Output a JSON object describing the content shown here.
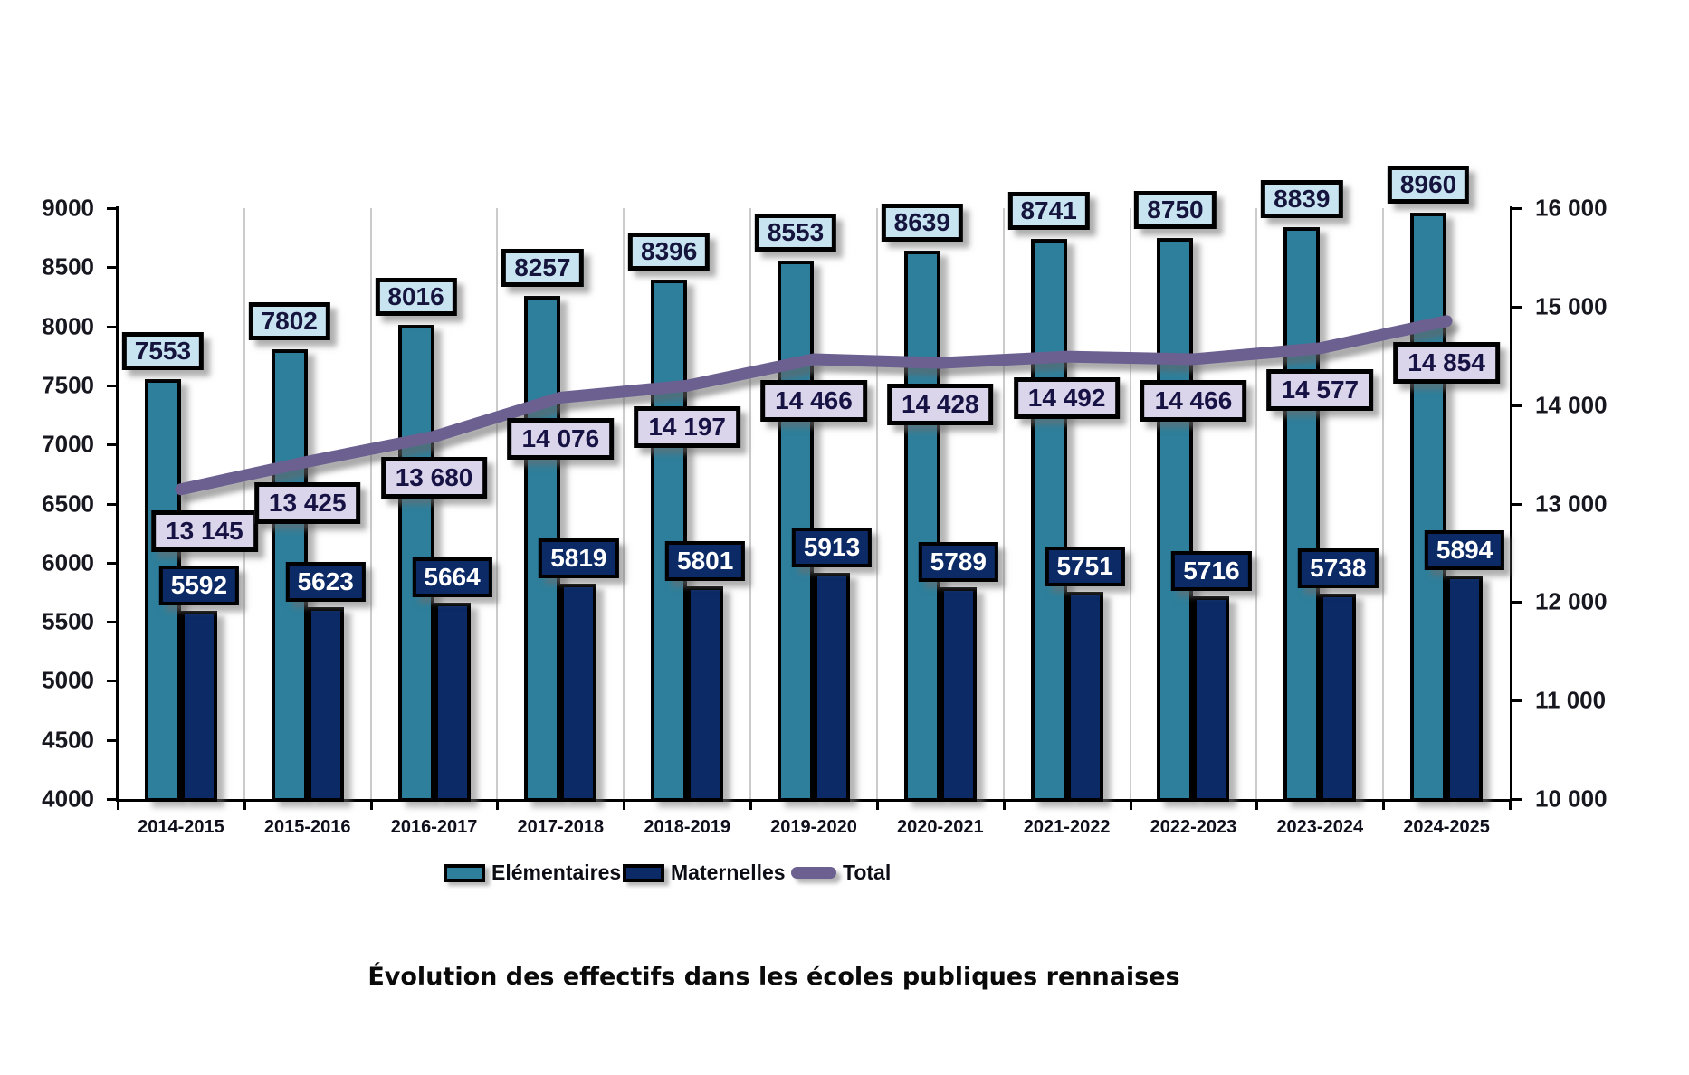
{
  "chart_data": {
    "type": "bar",
    "subtype": "grouped-bars-with-line-overlay",
    "title": "Évolution des effectifs dans les écoles publiques rennaises",
    "categories": [
      "2014-2015",
      "2015-2016",
      "2016-2017",
      "2017-2018",
      "2018-2019",
      "2019-2020",
      "2020-2021",
      "2021-2022",
      "2022-2023",
      "2023-2024",
      "2024-2025"
    ],
    "series": [
      {
        "name": "Elémentaires",
        "type": "bar",
        "axis": "left",
        "color": "#2E7F9B",
        "values": [
          7553,
          7802,
          8016,
          8257,
          8396,
          8553,
          8639,
          8741,
          8750,
          8839,
          8960
        ],
        "label_box_color": "#C8E4F1"
      },
      {
        "name": "Maternelles",
        "type": "bar",
        "axis": "left",
        "color": "#0B2A66",
        "values": [
          5592,
          5623,
          5664,
          5819,
          5801,
          5913,
          5789,
          5751,
          5716,
          5738,
          5894
        ],
        "label_box_color": "#0B2A66"
      },
      {
        "name": "Total",
        "type": "line",
        "axis": "right",
        "color": "#6C6091",
        "values": [
          13145,
          13425,
          13680,
          14076,
          14197,
          14466,
          14428,
          14492,
          14466,
          14577,
          14854
        ],
        "value_labels": [
          "13 145",
          "13 425",
          "13 680",
          "14 076",
          "14 197",
          "14 466",
          "14 428",
          "14 492",
          "14 466",
          "14 577",
          "14 854"
        ],
        "label_box_color": "#DAD5EA"
      }
    ],
    "axes": {
      "left": {
        "min": 4000,
        "max": 9000,
        "step": 500,
        "tick_labels": [
          "9000",
          "8500",
          "8000",
          "7500",
          "7000",
          "6500",
          "6000",
          "5500",
          "5000",
          "4500",
          "4000"
        ]
      },
      "right": {
        "min": 10000,
        "max": 16000,
        "step": 1000,
        "tick_labels": [
          "16 000",
          "15 000",
          "14 000",
          "13 000",
          "12 000",
          "11 000",
          "10 000"
        ]
      }
    },
    "grid": {
      "vertical_category_gridlines": true,
      "horizontal_gridlines": false
    },
    "legend": {
      "position": "bottom",
      "items": [
        "Elémentaires",
        "Maternelles",
        "Total"
      ]
    },
    "label_styles": {
      "box_border_color": "#000000",
      "elem_text_color": "#14143C",
      "mat_text_color": "#FFFFFF",
      "total_text_color": "#171244"
    }
  }
}
